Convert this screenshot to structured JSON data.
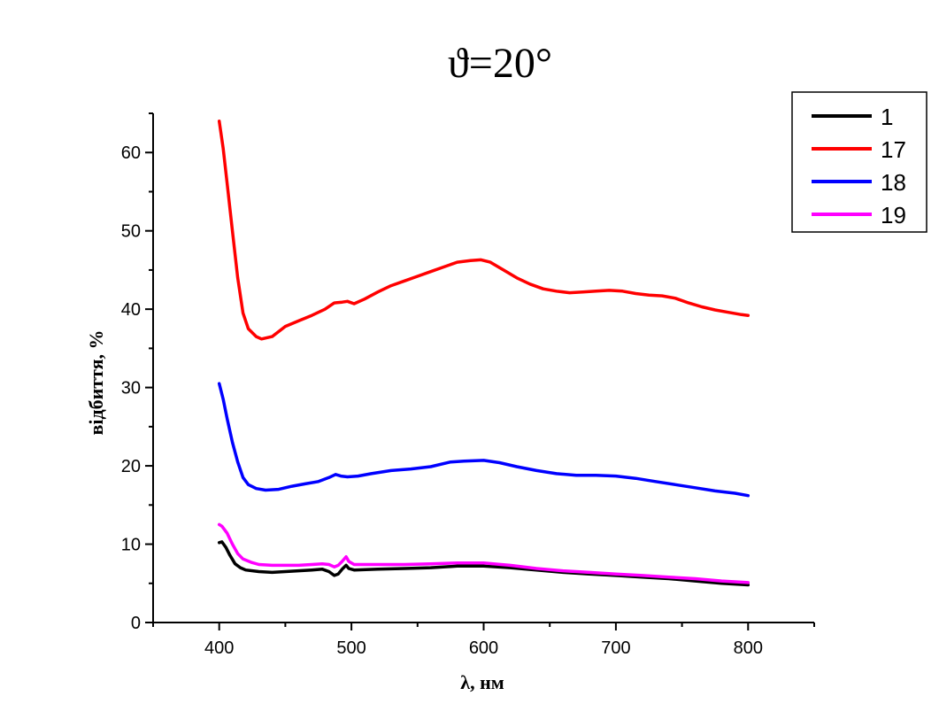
{
  "chart_data": {
    "type": "line",
    "title": "ϑ=20°",
    "xlabel": "λ, нм",
    "ylabel": "відбиття, %",
    "xlim": [
      350,
      850
    ],
    "ylim": [
      0,
      65
    ],
    "xticks": [
      400,
      500,
      600,
      700,
      800
    ],
    "yticks": [
      0,
      10,
      20,
      30,
      40,
      50,
      60
    ],
    "grid": false,
    "legend_position": "top-right",
    "series": [
      {
        "name": "1",
        "color": "#000000",
        "points": [
          [
            400,
            10.2
          ],
          [
            402,
            10.3
          ],
          [
            405,
            9.6
          ],
          [
            408,
            8.6
          ],
          [
            412,
            7.5
          ],
          [
            416,
            7.0
          ],
          [
            420,
            6.7
          ],
          [
            430,
            6.5
          ],
          [
            440,
            6.4
          ],
          [
            450,
            6.5
          ],
          [
            460,
            6.6
          ],
          [
            470,
            6.7
          ],
          [
            478,
            6.8
          ],
          [
            483,
            6.5
          ],
          [
            487,
            6.0
          ],
          [
            490,
            6.2
          ],
          [
            493,
            6.8
          ],
          [
            496,
            7.3
          ],
          [
            498,
            6.9
          ],
          [
            502,
            6.7
          ],
          [
            520,
            6.8
          ],
          [
            540,
            6.9
          ],
          [
            560,
            7.0
          ],
          [
            580,
            7.2
          ],
          [
            600,
            7.2
          ],
          [
            620,
            7.0
          ],
          [
            640,
            6.7
          ],
          [
            660,
            6.4
          ],
          [
            680,
            6.2
          ],
          [
            700,
            6.0
          ],
          [
            720,
            5.8
          ],
          [
            740,
            5.6
          ],
          [
            760,
            5.3
          ],
          [
            780,
            5.0
          ],
          [
            800,
            4.8
          ]
        ]
      },
      {
        "name": "17",
        "color": "#ff0000",
        "points": [
          [
            400,
            64.0
          ],
          [
            403,
            60.5
          ],
          [
            406,
            56.0
          ],
          [
            410,
            50.0
          ],
          [
            414,
            44.0
          ],
          [
            418,
            39.5
          ],
          [
            422,
            37.5
          ],
          [
            428,
            36.5
          ],
          [
            432,
            36.2
          ],
          [
            440,
            36.5
          ],
          [
            450,
            37.8
          ],
          [
            460,
            38.5
          ],
          [
            470,
            39.2
          ],
          [
            480,
            40.0
          ],
          [
            487,
            40.8
          ],
          [
            493,
            40.9
          ],
          [
            497,
            41.0
          ],
          [
            502,
            40.7
          ],
          [
            510,
            41.3
          ],
          [
            520,
            42.2
          ],
          [
            530,
            43.0
          ],
          [
            540,
            43.6
          ],
          [
            550,
            44.2
          ],
          [
            560,
            44.8
          ],
          [
            570,
            45.4
          ],
          [
            580,
            46.0
          ],
          [
            590,
            46.2
          ],
          [
            598,
            46.3
          ],
          [
            605,
            46.0
          ],
          [
            615,
            45.0
          ],
          [
            625,
            44.0
          ],
          [
            635,
            43.2
          ],
          [
            645,
            42.6
          ],
          [
            655,
            42.3
          ],
          [
            665,
            42.1
          ],
          [
            675,
            42.2
          ],
          [
            685,
            42.3
          ],
          [
            695,
            42.4
          ],
          [
            705,
            42.3
          ],
          [
            715,
            42.0
          ],
          [
            725,
            41.8
          ],
          [
            735,
            41.7
          ],
          [
            745,
            41.4
          ],
          [
            755,
            40.8
          ],
          [
            765,
            40.3
          ],
          [
            775,
            39.9
          ],
          [
            785,
            39.6
          ],
          [
            795,
            39.3
          ],
          [
            800,
            39.2
          ]
        ]
      },
      {
        "name": "18",
        "color": "#0000ff",
        "points": [
          [
            400,
            30.5
          ],
          [
            403,
            28.5
          ],
          [
            406,
            26.0
          ],
          [
            410,
            23.0
          ],
          [
            414,
            20.5
          ],
          [
            418,
            18.5
          ],
          [
            422,
            17.6
          ],
          [
            428,
            17.1
          ],
          [
            435,
            16.9
          ],
          [
            445,
            17.0
          ],
          [
            455,
            17.4
          ],
          [
            465,
            17.7
          ],
          [
            475,
            18.0
          ],
          [
            483,
            18.5
          ],
          [
            488,
            18.9
          ],
          [
            492,
            18.7
          ],
          [
            497,
            18.6
          ],
          [
            505,
            18.7
          ],
          [
            515,
            19.0
          ],
          [
            530,
            19.4
          ],
          [
            545,
            19.6
          ],
          [
            560,
            19.9
          ],
          [
            575,
            20.5
          ],
          [
            585,
            20.6
          ],
          [
            600,
            20.7
          ],
          [
            612,
            20.4
          ],
          [
            625,
            19.9
          ],
          [
            640,
            19.4
          ],
          [
            655,
            19.0
          ],
          [
            670,
            18.8
          ],
          [
            685,
            18.8
          ],
          [
            700,
            18.7
          ],
          [
            715,
            18.4
          ],
          [
            730,
            18.0
          ],
          [
            745,
            17.6
          ],
          [
            760,
            17.2
          ],
          [
            775,
            16.8
          ],
          [
            790,
            16.5
          ],
          [
            800,
            16.2
          ]
        ]
      },
      {
        "name": "19",
        "color": "#ff00ff",
        "points": [
          [
            400,
            12.5
          ],
          [
            402,
            12.3
          ],
          [
            406,
            11.4
          ],
          [
            410,
            10.0
          ],
          [
            414,
            8.8
          ],
          [
            418,
            8.1
          ],
          [
            424,
            7.7
          ],
          [
            430,
            7.4
          ],
          [
            440,
            7.3
          ],
          [
            450,
            7.3
          ],
          [
            460,
            7.3
          ],
          [
            470,
            7.4
          ],
          [
            478,
            7.5
          ],
          [
            483,
            7.4
          ],
          [
            487,
            7.1
          ],
          [
            490,
            7.3
          ],
          [
            493,
            7.8
          ],
          [
            496,
            8.4
          ],
          [
            498,
            7.8
          ],
          [
            502,
            7.4
          ],
          [
            520,
            7.4
          ],
          [
            540,
            7.4
          ],
          [
            560,
            7.5
          ],
          [
            580,
            7.6
          ],
          [
            600,
            7.6
          ],
          [
            620,
            7.3
          ],
          [
            640,
            6.9
          ],
          [
            660,
            6.6
          ],
          [
            680,
            6.4
          ],
          [
            700,
            6.2
          ],
          [
            720,
            6.0
          ],
          [
            740,
            5.8
          ],
          [
            760,
            5.6
          ],
          [
            780,
            5.3
          ],
          [
            800,
            5.1
          ]
        ]
      }
    ]
  }
}
